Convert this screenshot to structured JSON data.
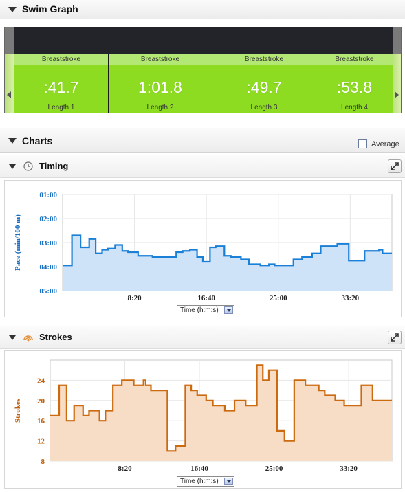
{
  "swim_graph": {
    "title": "Swim Graph",
    "lengths": [
      {
        "stroke": "Breaststroke",
        "time": ":41.7",
        "label": "Length 1"
      },
      {
        "stroke": "Breaststroke",
        "time": "1:01.8",
        "label": "Length 2"
      },
      {
        "stroke": "Breaststroke",
        "time": ":49.7",
        "label": "Length 3"
      },
      {
        "stroke": "Breaststroke",
        "time": ":53.8",
        "label": "Length 4"
      }
    ]
  },
  "charts": {
    "title": "Charts",
    "average_label": "Average",
    "average_checked": false
  },
  "timing": {
    "title": "Timing",
    "selector": "Time (h:m:s)"
  },
  "strokes": {
    "title": "Strokes",
    "selector": "Time (h:m:s)"
  },
  "colors": {
    "length_green": "#8edc22",
    "pace_line": "#1a7fd6",
    "pace_fill": "#cfe3f8",
    "stroke_line": "#cc6a10",
    "stroke_fill": "#f7dcc6"
  },
  "chart_data": [
    {
      "type": "area",
      "step": true,
      "ylabel": "Pace (min/100 m)",
      "xlabel": "",
      "y_ticks": [
        "01:00",
        "02:00",
        "03:00",
        "04:00",
        "05:00"
      ],
      "y_reversed": true,
      "ylim_minutes": [
        1,
        5
      ],
      "x_ticks": [
        "8:20",
        "16:40",
        "25:00",
        "33:20"
      ],
      "x_tick_seconds": [
        500,
        1000,
        1500,
        2000
      ],
      "xlim_seconds": [
        0,
        2290
      ],
      "x_seconds": [
        0,
        65,
        125,
        185,
        230,
        275,
        315,
        365,
        415,
        455,
        525,
        575,
        625,
        695,
        725,
        790,
        835,
        885,
        935,
        975,
        1025,
        1065,
        1125,
        1170,
        1240,
        1295,
        1335,
        1375,
        1435,
        1475,
        1525,
        1575,
        1605,
        1665,
        1735,
        1795,
        1835,
        1910,
        1990,
        2050,
        2100,
        2200,
        2225,
        2285
      ],
      "pace_minutes": [
        3.95,
        2.7,
        3.2,
        2.85,
        3.45,
        3.3,
        3.25,
        3.1,
        3.35,
        3.4,
        3.55,
        3.55,
        3.6,
        3.6,
        3.6,
        3.4,
        3.35,
        3.3,
        3.6,
        3.8,
        3.2,
        3.15,
        3.55,
        3.6,
        3.7,
        3.9,
        3.9,
        3.95,
        3.9,
        3.95,
        3.95,
        3.95,
        3.7,
        3.6,
        3.45,
        3.15,
        3.15,
        3.05,
        3.75,
        3.75,
        3.35,
        3.3,
        3.45,
        3.45
      ]
    },
    {
      "type": "area",
      "step": true,
      "ylabel": "Strokes",
      "xlabel": "",
      "y_ticks": [
        8,
        12,
        16,
        20,
        24
      ],
      "ylim": [
        8,
        28
      ],
      "x_ticks": [
        "8:20",
        "16:40",
        "25:00",
        "33:20"
      ],
      "x_tick_seconds": [
        500,
        1000,
        1500,
        2000
      ],
      "xlim_seconds": [
        0,
        2290
      ],
      "x_seconds": [
        0,
        60,
        110,
        160,
        220,
        260,
        330,
        370,
        420,
        480,
        560,
        625,
        640,
        675,
        785,
        840,
        905,
        945,
        985,
        1045,
        1090,
        1170,
        1235,
        1310,
        1385,
        1425,
        1465,
        1520,
        1570,
        1635,
        1650,
        1710,
        1800,
        1840,
        1910,
        1970,
        2040,
        2085,
        2160,
        2200,
        2230,
        2290
      ],
      "values": [
        17,
        23,
        16,
        19,
        17,
        18,
        16,
        18,
        23,
        24,
        23,
        24,
        23,
        22,
        10,
        11,
        23,
        22,
        21,
        20,
        19,
        18,
        20,
        19,
        27,
        24,
        26,
        14,
        12,
        24,
        24,
        23,
        22,
        21,
        20,
        19,
        19,
        23,
        20,
        20,
        20,
        20
      ]
    }
  ]
}
